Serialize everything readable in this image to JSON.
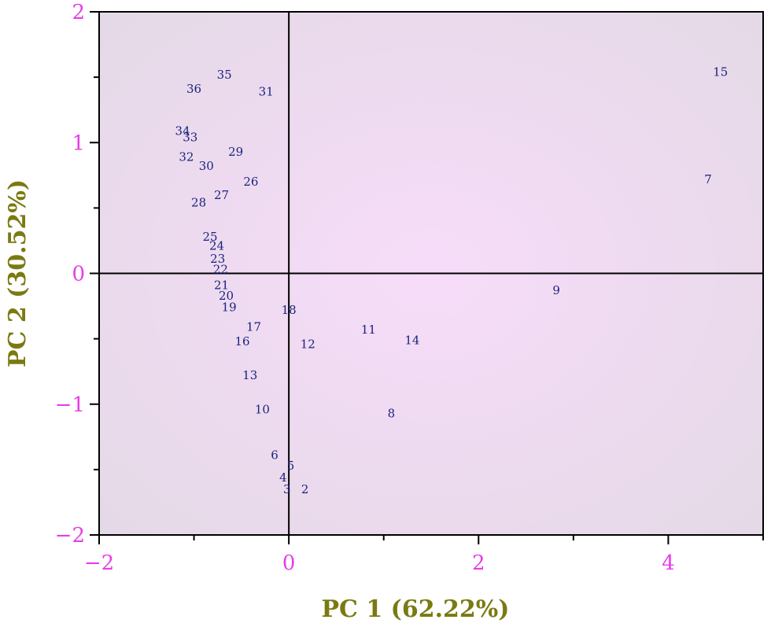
{
  "chart_data": {
    "type": "scatter",
    "title": "",
    "xlabel": "PC 1 (62.22%)",
    "ylabel": "PC 2 (30.52%)",
    "xlim": [
      -2,
      5
    ],
    "ylim": [
      -2,
      2
    ],
    "x_ticks": [
      -2,
      0,
      2,
      4
    ],
    "y_ticks": [
      -2,
      -1,
      0,
      1,
      2
    ],
    "x_tick_labels": [
      "−2",
      "0",
      "2",
      "4"
    ],
    "y_tick_labels": [
      "−2",
      "−1",
      "0",
      "1",
      "2"
    ],
    "reference_lines": {
      "x": 0,
      "y": 0
    },
    "grid": false,
    "colors": {
      "tick_labels": "#e63ee6",
      "axis_titles": "#7a7a12",
      "point_labels": "#1a237e",
      "plot_center": "#f7dcf9",
      "plot_edge": "#e4d9e6"
    },
    "points": [
      {
        "label": "2",
        "x": 0.17,
        "y": -1.65
      },
      {
        "label": "3",
        "x": -0.02,
        "y": -1.65
      },
      {
        "label": "4",
        "x": -0.06,
        "y": -1.56
      },
      {
        "label": "5",
        "x": 0.02,
        "y": -1.47
      },
      {
        "label": "6",
        "x": -0.15,
        "y": -1.39
      },
      {
        "label": "7",
        "x": 4.42,
        "y": 0.72
      },
      {
        "label": "8",
        "x": 1.08,
        "y": -1.07
      },
      {
        "label": "9",
        "x": 2.82,
        "y": -0.13
      },
      {
        "label": "10",
        "x": -0.28,
        "y": -1.04
      },
      {
        "label": "11",
        "x": 0.84,
        "y": -0.43
      },
      {
        "label": "12",
        "x": 0.2,
        "y": -0.54
      },
      {
        "label": "13",
        "x": -0.41,
        "y": -0.78
      },
      {
        "label": "14",
        "x": 1.3,
        "y": -0.51
      },
      {
        "label": "15",
        "x": 4.55,
        "y": 1.54
      },
      {
        "label": "16",
        "x": -0.49,
        "y": -0.52
      },
      {
        "label": "17",
        "x": -0.37,
        "y": -0.41
      },
      {
        "label": "18",
        "x": 0.0,
        "y": -0.28
      },
      {
        "label": "19",
        "x": -0.63,
        "y": -0.26
      },
      {
        "label": "20",
        "x": -0.66,
        "y": -0.17
      },
      {
        "label": "21",
        "x": -0.71,
        "y": -0.09
      },
      {
        "label": "22",
        "x": -0.72,
        "y": 0.03
      },
      {
        "label": "23",
        "x": -0.75,
        "y": 0.11
      },
      {
        "label": "24",
        "x": -0.76,
        "y": 0.21
      },
      {
        "label": "25",
        "x": -0.83,
        "y": 0.28
      },
      {
        "label": "26",
        "x": -0.4,
        "y": 0.7
      },
      {
        "label": "27",
        "x": -0.71,
        "y": 0.6
      },
      {
        "label": "28",
        "x": -0.95,
        "y": 0.54
      },
      {
        "label": "29",
        "x": -0.56,
        "y": 0.93
      },
      {
        "label": "30",
        "x": -0.87,
        "y": 0.82
      },
      {
        "label": "31",
        "x": -0.24,
        "y": 1.39
      },
      {
        "label": "32",
        "x": -1.08,
        "y": 0.89
      },
      {
        "label": "33",
        "x": -1.04,
        "y": 1.04
      },
      {
        "label": "34",
        "x": -1.12,
        "y": 1.09
      },
      {
        "label": "35",
        "x": -0.68,
        "y": 1.52
      },
      {
        "label": "36",
        "x": -1.0,
        "y": 1.41
      }
    ]
  }
}
